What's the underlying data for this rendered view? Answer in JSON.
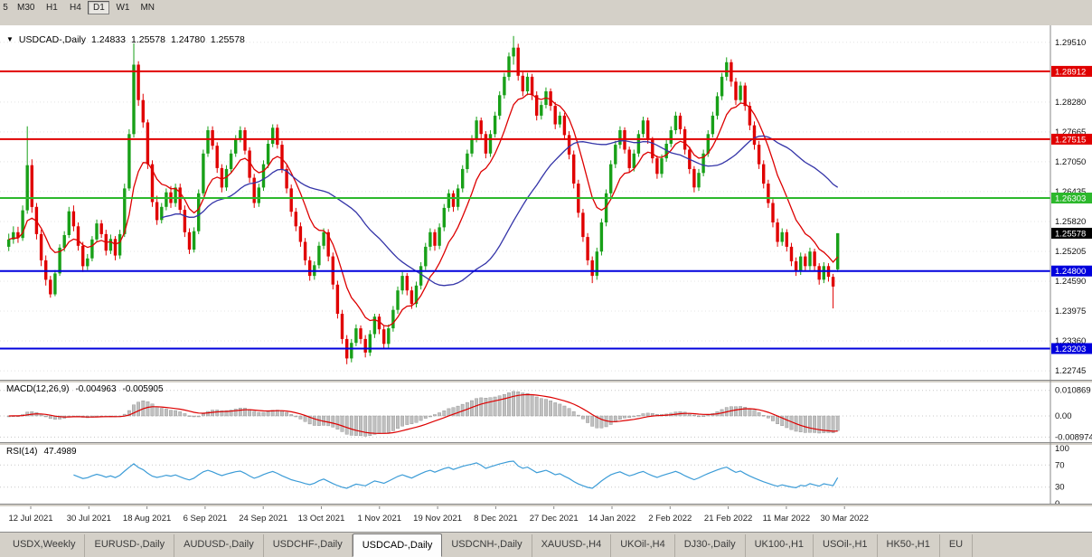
{
  "window": {
    "toolbar": {
      "timeframes": [
        "5",
        "M30",
        "H1",
        "H4",
        "D1",
        "W1",
        "MN"
      ],
      "active": "D1"
    },
    "tabs": {
      "items": [
        "USDX,Weekly",
        "EURUSD-,Daily",
        "AUDUSD-,Daily",
        "USDCHF-,Daily",
        "USDCAD-,Daily",
        "USDCNH-,Daily",
        "XAUUSD-,H4",
        "UKOil-,H4",
        "DJ30-,Daily",
        "UK100-,H1",
        "USOil-,H1",
        "HK50-,H1",
        "EU"
      ],
      "active": "USDCAD-,Daily"
    }
  },
  "chart_data": {
    "type": "candlestick",
    "title": "USDCAD-,Daily",
    "header": {
      "symbol": "USDCAD-,Daily",
      "open": "1.24833",
      "high": "1.25578",
      "low": "1.24780",
      "close": "1.25578"
    },
    "x_labels": [
      "12 Jul 2021",
      "30 Jul 2021",
      "18 Aug 2021",
      "6 Sep 2021",
      "24 Sep 2021",
      "13 Oct 2021",
      "1 Nov 2021",
      "19 Nov 2021",
      "8 Dec 2021",
      "27 Dec 2021",
      "14 Jan 2022",
      "2 Feb 2022",
      "21 Feb 2022",
      "11 Mar 2022",
      "30 Mar 2022"
    ],
    "y_axis": {
      "labels": [
        "1.29510",
        "1.28280",
        "1.27665",
        "1.27050",
        "1.26435",
        "1.25820",
        "1.25205",
        "1.24590",
        "1.23975",
        "1.23360",
        "1.22745"
      ],
      "min": 1.2256,
      "max": 1.2986
    },
    "hlines": [
      {
        "price": 1.28912,
        "label": "1.28912",
        "color": "#e00000"
      },
      {
        "price": 1.27515,
        "label": "1.27515",
        "color": "#e00000"
      },
      {
        "price": 1.26303,
        "label": "1.26303",
        "color": "#2db82d"
      },
      {
        "price": 1.248,
        "label": "1.24800",
        "color": "#0000dd"
      },
      {
        "price": 1.23203,
        "label": "1.23203",
        "color": "#0000dd"
      }
    ],
    "current_price": {
      "price": 1.25578,
      "label": "1.25578",
      "color": "#000000"
    },
    "colors": {
      "up": "#18a018",
      "down": "#e00000",
      "ma_fast": "#dd0000",
      "ma_slow": "#3434a8",
      "macd_hist": "#c0c0c0",
      "macd_signal": "#dd0000",
      "rsi": "#3c9cd7",
      "grid": "#e4e4e4",
      "level_grid": "#c8c8c8"
    },
    "moving_averages": [
      {
        "type": "ema",
        "period": 10,
        "color_key": "ma_fast"
      },
      {
        "type": "sma",
        "period": 34,
        "color_key": "ma_slow"
      }
    ],
    "macd": {
      "label": "MACD(12,26,9)",
      "main_value": "-0.004963",
      "signal_value": "-0.005905",
      "fast": 12,
      "slow": 26,
      "signal": 9,
      "axis": [
        {
          "label": "0.010869",
          "value": 0.010869
        },
        {
          "label": "0.00",
          "value": 0
        },
        {
          "label": "-0.008974",
          "value": -0.008974
        }
      ]
    },
    "rsi": {
      "label": "RSI(14)",
      "value_text": "47.4989",
      "period": 14,
      "levels": [
        70,
        30
      ],
      "axis": [
        {
          "label": "100",
          "value": 100
        },
        {
          "label": "70",
          "value": 70
        },
        {
          "label": "30",
          "value": 30
        },
        {
          "label": "0",
          "value": 0
        }
      ]
    },
    "candles": [
      [
        1.253,
        1.2557,
        1.2521,
        1.2545
      ],
      [
        1.2545,
        1.2572,
        1.2536,
        1.256
      ],
      [
        1.256,
        1.2571,
        1.2538,
        1.2548
      ],
      [
        1.2548,
        1.2615,
        1.2542,
        1.2605
      ],
      [
        1.2605,
        1.2778,
        1.2598,
        1.2698
      ],
      [
        1.2698,
        1.271,
        1.26,
        1.2612
      ],
      [
        1.2612,
        1.262,
        1.2545,
        1.2556
      ],
      [
        1.2556,
        1.2565,
        1.249,
        1.2502
      ],
      [
        1.2502,
        1.2512,
        1.245,
        1.2462
      ],
      [
        1.2462,
        1.247,
        1.2425,
        1.2432
      ],
      [
        1.2432,
        1.2482,
        1.2428,
        1.2475
      ],
      [
        1.2475,
        1.2535,
        1.247,
        1.2528
      ],
      [
        1.2528,
        1.2562,
        1.252,
        1.2554
      ],
      [
        1.2554,
        1.2612,
        1.2548,
        1.2603
      ],
      [
        1.2603,
        1.2615,
        1.2562,
        1.2572
      ],
      [
        1.2572,
        1.258,
        1.2522,
        1.2532
      ],
      [
        1.2532,
        1.254,
        1.2478,
        1.249
      ],
      [
        1.249,
        1.2515,
        1.2482,
        1.2506
      ],
      [
        1.2506,
        1.2552,
        1.25,
        1.2545
      ],
      [
        1.2545,
        1.2586,
        1.254,
        1.2578
      ],
      [
        1.2578,
        1.2585,
        1.2548,
        1.2556
      ],
      [
        1.2556,
        1.2565,
        1.2512,
        1.2522
      ],
      [
        1.2522,
        1.2555,
        1.2515,
        1.2546
      ],
      [
        1.2546,
        1.2552,
        1.2502,
        1.2512
      ],
      [
        1.2512,
        1.2565,
        1.2505,
        1.2556
      ],
      [
        1.2556,
        1.266,
        1.255,
        1.265
      ],
      [
        1.265,
        1.2772,
        1.2645,
        1.2762
      ],
      [
        1.2762,
        1.2949,
        1.2755,
        1.2905
      ],
      [
        1.2905,
        1.2912,
        1.282,
        1.2832
      ],
      [
        1.2832,
        1.2845,
        1.2775,
        1.2786
      ],
      [
        1.2786,
        1.2792,
        1.269,
        1.27
      ],
      [
        1.27,
        1.2708,
        1.2612,
        1.2622
      ],
      [
        1.2622,
        1.2635,
        1.2575,
        1.2585
      ],
      [
        1.2585,
        1.262,
        1.2578,
        1.2612
      ],
      [
        1.2612,
        1.265,
        1.2605,
        1.2642
      ],
      [
        1.2642,
        1.2655,
        1.261,
        1.262
      ],
      [
        1.262,
        1.266,
        1.2612,
        1.2652
      ],
      [
        1.2652,
        1.266,
        1.2598,
        1.2606
      ],
      [
        1.2606,
        1.2615,
        1.255,
        1.256
      ],
      [
        1.256,
        1.2568,
        1.2515,
        1.2524
      ],
      [
        1.2524,
        1.257,
        1.2518,
        1.2562
      ],
      [
        1.2562,
        1.2648,
        1.2556,
        1.264
      ],
      [
        1.264,
        1.273,
        1.2635,
        1.2722
      ],
      [
        1.2722,
        1.2778,
        1.2715,
        1.277
      ],
      [
        1.277,
        1.2778,
        1.273,
        1.2738
      ],
      [
        1.2738,
        1.2745,
        1.2682,
        1.2692
      ],
      [
        1.2692,
        1.27,
        1.2642,
        1.2652
      ],
      [
        1.2652,
        1.2698,
        1.2645,
        1.269
      ],
      [
        1.269,
        1.273,
        1.2682,
        1.2722
      ],
      [
        1.2722,
        1.276,
        1.2715,
        1.2752
      ],
      [
        1.2752,
        1.2778,
        1.2745,
        1.277
      ],
      [
        1.277,
        1.2776,
        1.272,
        1.2728
      ],
      [
        1.2728,
        1.2735,
        1.2662,
        1.2672
      ],
      [
        1.2672,
        1.268,
        1.261,
        1.262
      ],
      [
        1.262,
        1.266,
        1.2612,
        1.2652
      ],
      [
        1.2652,
        1.2708,
        1.2645,
        1.27
      ],
      [
        1.27,
        1.275,
        1.2692,
        1.2742
      ],
      [
        1.2742,
        1.2782,
        1.2735,
        1.2775
      ],
      [
        1.2775,
        1.2782,
        1.2732,
        1.274
      ],
      [
        1.274,
        1.2748,
        1.2682,
        1.269
      ],
      [
        1.269,
        1.2698,
        1.264,
        1.265
      ],
      [
        1.265,
        1.2658,
        1.2592,
        1.2602
      ],
      [
        1.2602,
        1.261,
        1.2562,
        1.2572
      ],
      [
        1.2572,
        1.258,
        1.253,
        1.254
      ],
      [
        1.254,
        1.2548,
        1.2492,
        1.2502
      ],
      [
        1.2502,
        1.251,
        1.246,
        1.247
      ],
      [
        1.247,
        1.25,
        1.2462,
        1.2492
      ],
      [
        1.2492,
        1.254,
        1.2485,
        1.2532
      ],
      [
        1.2532,
        1.2568,
        1.2525,
        1.256
      ],
      [
        1.256,
        1.2566,
        1.25,
        1.251
      ],
      [
        1.251,
        1.2518,
        1.2442,
        1.2452
      ],
      [
        1.2452,
        1.246,
        1.2382,
        1.2392
      ],
      [
        1.2392,
        1.24,
        1.233,
        1.234
      ],
      [
        1.234,
        1.2348,
        1.2288,
        1.23
      ],
      [
        1.23,
        1.234,
        1.2292,
        1.2332
      ],
      [
        1.2332,
        1.237,
        1.2325,
        1.2362
      ],
      [
        1.2362,
        1.2368,
        1.233,
        1.234
      ],
      [
        1.234,
        1.2348,
        1.2302,
        1.2312
      ],
      [
        1.2312,
        1.2358,
        1.2305,
        1.235
      ],
      [
        1.235,
        1.2392,
        1.2342,
        1.2386
      ],
      [
        1.2386,
        1.2392,
        1.235,
        1.236
      ],
      [
        1.236,
        1.2368,
        1.232,
        1.233
      ],
      [
        1.233,
        1.237,
        1.2322,
        1.2362
      ],
      [
        1.2362,
        1.2408,
        1.2355,
        1.24
      ],
      [
        1.24,
        1.2448,
        1.2392,
        1.244
      ],
      [
        1.244,
        1.2478,
        1.2432,
        1.247
      ],
      [
        1.247,
        1.2476,
        1.243,
        1.244
      ],
      [
        1.244,
        1.2448,
        1.2402,
        1.2412
      ],
      [
        1.2412,
        1.2458,
        1.2405,
        1.245
      ],
      [
        1.245,
        1.2498,
        1.2442,
        1.249
      ],
      [
        1.249,
        1.2538,
        1.2482,
        1.253
      ],
      [
        1.253,
        1.2568,
        1.2522,
        1.256
      ],
      [
        1.256,
        1.2566,
        1.2522,
        1.2532
      ],
      [
        1.2532,
        1.2578,
        1.2525,
        1.257
      ],
      [
        1.257,
        1.2618,
        1.2562,
        1.261
      ],
      [
        1.261,
        1.2648,
        1.2602,
        1.264
      ],
      [
        1.264,
        1.2646,
        1.2602,
        1.2612
      ],
      [
        1.2612,
        1.2658,
        1.2605,
        1.265
      ],
      [
        1.265,
        1.2698,
        1.2642,
        1.269
      ],
      [
        1.269,
        1.273,
        1.2682,
        1.2722
      ],
      [
        1.2722,
        1.276,
        1.2715,
        1.2752
      ],
      [
        1.2752,
        1.2798,
        1.2745,
        1.279
      ],
      [
        1.279,
        1.2796,
        1.2752,
        1.2762
      ],
      [
        1.2762,
        1.2768,
        1.2712,
        1.2722
      ],
      [
        1.2722,
        1.277,
        1.2715,
        1.2762
      ],
      [
        1.2762,
        1.2808,
        1.2755,
        1.28
      ],
      [
        1.28,
        1.285,
        1.2792,
        1.2842
      ],
      [
        1.2842,
        1.2888,
        1.2835,
        1.288
      ],
      [
        1.288,
        1.293,
        1.2872,
        1.2922
      ],
      [
        1.2922,
        1.2964,
        1.2905,
        1.294
      ],
      [
        1.294,
        1.2948,
        1.2872,
        1.2882
      ],
      [
        1.2882,
        1.289,
        1.284,
        1.285
      ],
      [
        1.285,
        1.2888,
        1.2842,
        1.288
      ],
      [
        1.288,
        1.2886,
        1.2832,
        1.2842
      ],
      [
        1.2842,
        1.285,
        1.279,
        1.28
      ],
      [
        1.28,
        1.283,
        1.2792,
        1.2822
      ],
      [
        1.2822,
        1.2858,
        1.2815,
        1.285
      ],
      [
        1.285,
        1.2856,
        1.281,
        1.282
      ],
      [
        1.282,
        1.2828,
        1.2772,
        1.2782
      ],
      [
        1.2782,
        1.2808,
        1.2775,
        1.28
      ],
      [
        1.28,
        1.2806,
        1.275,
        1.276
      ],
      [
        1.276,
        1.2768,
        1.271,
        1.272
      ],
      [
        1.272,
        1.2728,
        1.265,
        1.266
      ],
      [
        1.266,
        1.2668,
        1.259,
        1.26
      ],
      [
        1.26,
        1.2608,
        1.254,
        1.255
      ],
      [
        1.255,
        1.2558,
        1.2492,
        1.2502
      ],
      [
        1.2502,
        1.251,
        1.2455,
        1.247
      ],
      [
        1.247,
        1.2528,
        1.2462,
        1.252
      ],
      [
        1.252,
        1.2588,
        1.2512,
        1.258
      ],
      [
        1.258,
        1.2648,
        1.2572,
        1.264
      ],
      [
        1.264,
        1.2708,
        1.2632,
        1.27
      ],
      [
        1.27,
        1.2748,
        1.2692,
        1.274
      ],
      [
        1.274,
        1.2778,
        1.2732,
        1.277
      ],
      [
        1.277,
        1.2776,
        1.2722,
        1.273
      ],
      [
        1.273,
        1.2736,
        1.2682,
        1.2692
      ],
      [
        1.2692,
        1.273,
        1.2685,
        1.2722
      ],
      [
        1.2722,
        1.277,
        1.2715,
        1.2762
      ],
      [
        1.2762,
        1.2798,
        1.2755,
        1.279
      ],
      [
        1.279,
        1.2796,
        1.2742,
        1.275
      ],
      [
        1.275,
        1.2756,
        1.2702,
        1.2712
      ],
      [
        1.2712,
        1.2718,
        1.267,
        1.268
      ],
      [
        1.268,
        1.272,
        1.2672,
        1.2712
      ],
      [
        1.2712,
        1.275,
        1.2705,
        1.2742
      ],
      [
        1.2742,
        1.2778,
        1.2735,
        1.277
      ],
      [
        1.277,
        1.2808,
        1.2762,
        1.28
      ],
      [
        1.28,
        1.2806,
        1.2762,
        1.2772
      ],
      [
        1.2772,
        1.2778,
        1.272,
        1.273
      ],
      [
        1.273,
        1.2736,
        1.268,
        1.269
      ],
      [
        1.269,
        1.2696,
        1.2642,
        1.2652
      ],
      [
        1.2652,
        1.269,
        1.2645,
        1.2682
      ],
      [
        1.2682,
        1.273,
        1.2675,
        1.2722
      ],
      [
        1.2722,
        1.277,
        1.2715,
        1.2762
      ],
      [
        1.2762,
        1.2808,
        1.2755,
        1.28
      ],
      [
        1.28,
        1.2848,
        1.2792,
        1.284
      ],
      [
        1.284,
        1.2888,
        1.2832,
        1.288
      ],
      [
        1.288,
        1.292,
        1.2872,
        1.291
      ],
      [
        1.291,
        1.2916,
        1.286,
        1.287
      ],
      [
        1.287,
        1.2878,
        1.2822,
        1.2832
      ],
      [
        1.2832,
        1.287,
        1.2825,
        1.2862
      ],
      [
        1.2862,
        1.2868,
        1.281,
        1.282
      ],
      [
        1.282,
        1.2828,
        1.277,
        1.278
      ],
      [
        1.278,
        1.2788,
        1.273,
        1.274
      ],
      [
        1.274,
        1.2748,
        1.269,
        1.27
      ],
      [
        1.27,
        1.2708,
        1.265,
        1.266
      ],
      [
        1.266,
        1.2668,
        1.261,
        1.262
      ],
      [
        1.262,
        1.2628,
        1.257,
        1.258
      ],
      [
        1.258,
        1.2588,
        1.253,
        1.254
      ],
      [
        1.254,
        1.2568,
        1.2532,
        1.256
      ],
      [
        1.256,
        1.2566,
        1.252,
        1.253
      ],
      [
        1.253,
        1.2538,
        1.249,
        1.25
      ],
      [
        1.25,
        1.2508,
        1.247,
        1.248
      ],
      [
        1.248,
        1.2518,
        1.2472,
        1.251
      ],
      [
        1.251,
        1.2516,
        1.248,
        1.249
      ],
      [
        1.249,
        1.2528,
        1.2482,
        1.252
      ],
      [
        1.252,
        1.2526,
        1.248,
        1.249
      ],
      [
        1.249,
        1.2496,
        1.2452,
        1.2462
      ],
      [
        1.2462,
        1.2498,
        1.2455,
        1.249
      ],
      [
        1.249,
        1.2496,
        1.2458,
        1.2468
      ],
      [
        1.2468,
        1.2474,
        1.2403,
        1.2448
      ],
      [
        1.24833,
        1.25578,
        1.2478,
        1.25578
      ]
    ]
  }
}
